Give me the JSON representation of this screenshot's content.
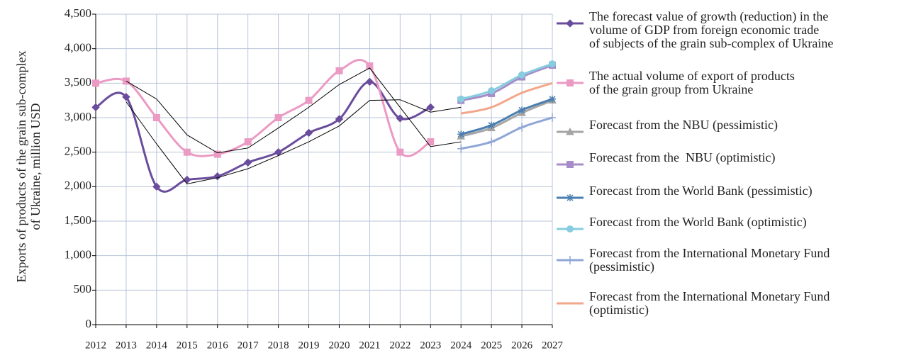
{
  "chart_data": {
    "type": "line",
    "y_label": "Exports of products of the grain sub-complex\nof Ukraine, million USD",
    "categories": [
      "2012",
      "2013",
      "2014",
      "2015",
      "2016",
      "2017",
      "2018",
      "2019",
      "2020",
      "2021",
      "2022",
      "2023",
      "2024",
      "2025",
      "2026",
      "2027"
    ],
    "ylim": [
      0,
      4500
    ],
    "yticks": [
      0,
      500,
      {
        "value": 1000,
        "label": "1,000"
      },
      {
        "value": 1500,
        "label": "1,500"
      },
      {
        "value": 2000,
        "label": "2,000"
      },
      {
        "value": 2500,
        "label": "2,500"
      },
      {
        "value": 3000,
        "label": "3,000"
      },
      {
        "value": 3500,
        "label": "3,500"
      },
      {
        "value": 4000,
        "label": "4,000"
      },
      {
        "value": 4500,
        "label": "4,500"
      }
    ],
    "grid": true,
    "series": [
      {
        "name": "The forecast value of growth (reduction) in the\nvolume of GDP from foreign economic trade\nof subjects of the grain sub-complex of Ukraine",
        "color": "#6a4c9c",
        "marker": "diamond",
        "values": [
          3150,
          3300,
          2000,
          2100,
          2150,
          2350,
          2500,
          2780,
          2980,
          3520,
          2990,
          3150,
          null,
          null,
          null,
          null
        ]
      },
      {
        "name": "The actual volume of export of products\nof the grain group from Ukraine",
        "color": "#eb9ac4",
        "marker": "square",
        "values": [
          3500,
          3530,
          3000,
          2500,
          2470,
          2650,
          3000,
          3250,
          3680,
          3750,
          2500,
          2650,
          null,
          null,
          null,
          null
        ]
      },
      {
        "name": "Forecast from the NBU (pessimistic)",
        "color": "#a5a5a5",
        "marker": "triangle",
        "values": [
          null,
          null,
          null,
          null,
          null,
          null,
          null,
          null,
          null,
          null,
          null,
          null,
          2730,
          2850,
          3070,
          3250
        ]
      },
      {
        "name": "Forecast from the  NBU (optimistic)",
        "color": "#a68cc8",
        "marker": "square",
        "values": [
          null,
          null,
          null,
          null,
          null,
          null,
          null,
          null,
          null,
          null,
          null,
          null,
          3250,
          3350,
          3590,
          3760
        ]
      },
      {
        "name": "Forecast from the World Bank (pessimistic)",
        "color": "#4a7eb0",
        "marker": "star",
        "values": [
          null,
          null,
          null,
          null,
          null,
          null,
          null,
          null,
          null,
          null,
          null,
          null,
          2760,
          2890,
          3110,
          3270
        ]
      },
      {
        "name": "Forecast from the World Bank (optimistic)",
        "color": "#86cde0",
        "marker": "circle",
        "values": [
          null,
          null,
          null,
          null,
          null,
          null,
          null,
          null,
          null,
          null,
          null,
          null,
          3270,
          3390,
          3620,
          3780
        ]
      },
      {
        "name": "Forecast from the International Monetary Fund\n(pessimistic)",
        "color": "#8fa6d6",
        "marker": "plus",
        "values": [
          null,
          null,
          null,
          null,
          null,
          null,
          null,
          null,
          null,
          null,
          null,
          null,
          2550,
          2650,
          2860,
          3000
        ]
      },
      {
        "name": "Forecast from the International Monetary Fund\n(optimistic)",
        "color": "#f2a68a",
        "marker": "none",
        "values": [
          null,
          null,
          null,
          null,
          null,
          null,
          null,
          null,
          null,
          null,
          null,
          null,
          3060,
          3150,
          3360,
          3500
        ]
      },
      {
        "color": "#000000",
        "marker": "none",
        "thin": true,
        "values": [
          null,
          3530,
          3270,
          2750,
          2490,
          2560,
          2850,
          3150,
          3480,
          3720,
          3150,
          2580,
          2650,
          null,
          null,
          null
        ]
      },
      {
        "color": "#000000",
        "marker": "none",
        "thin": true,
        "values": [
          null,
          3230,
          2620,
          2040,
          2130,
          2260,
          2450,
          2650,
          2880,
          3250,
          3260,
          3080,
          3150,
          null,
          null,
          null
        ]
      }
    ]
  }
}
